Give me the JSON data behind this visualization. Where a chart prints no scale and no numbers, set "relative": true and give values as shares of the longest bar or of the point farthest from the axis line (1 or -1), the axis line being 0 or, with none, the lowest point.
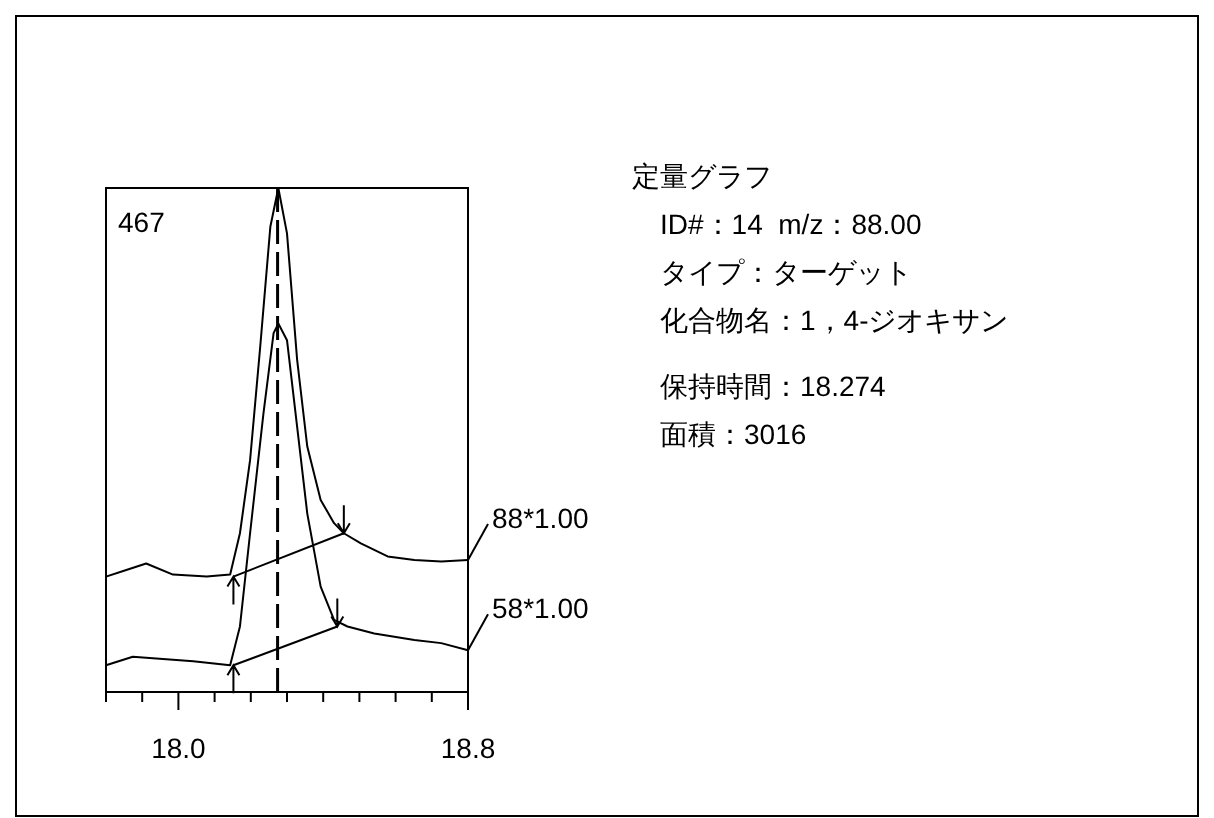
{
  "chart_data": {
    "type": "line",
    "title": "定量グラフ",
    "annotations": [
      "467",
      "ID#：14  m/z：88.00",
      "タイプ：ターゲット",
      "化合物名：1，4-ジオキサン",
      "保持時間：18.274",
      "面積：3016"
    ],
    "relative": true,
    "xlim": [
      17.8,
      18.8
    ],
    "xticks": [
      {
        "value": 17.8,
        "label": null
      },
      {
        "value": 17.9,
        "label": null
      },
      {
        "value": 18.0,
        "label": "18.0"
      },
      {
        "value": 18.1,
        "label": null
      },
      {
        "value": 18.2,
        "label": null
      },
      {
        "value": 18.3,
        "label": null
      },
      {
        "value": 18.4,
        "label": null
      },
      {
        "value": 18.5,
        "label": null
      },
      {
        "value": 18.6,
        "label": null
      },
      {
        "value": 18.7,
        "label": null
      },
      {
        "value": 18.8,
        "label": "18.8"
      }
    ],
    "grid": false,
    "legend": false,
    "marker": "none",
    "line_style": "solid",
    "ref_lines": [
      {
        "axis": "x",
        "value": 18.274,
        "line_style": "dashed",
        "color": "#000000"
      }
    ],
    "series": [
      {
        "name": "88*1.00",
        "color": "#000000",
        "x": [
          17.8,
          17.856,
          17.911,
          17.985,
          18.078,
          18.143,
          18.17,
          18.198,
          18.226,
          18.254,
          18.276,
          18.3,
          18.328,
          18.356,
          18.393,
          18.43,
          18.457,
          18.504,
          18.578,
          18.652,
          18.726,
          18.8
        ],
        "values": [
          0.229,
          0.242,
          0.255,
          0.233,
          0.229,
          0.233,
          0.315,
          0.46,
          0.685,
          0.923,
          1.0,
          0.91,
          0.659,
          0.487,
          0.381,
          0.335,
          0.315,
          0.295,
          0.269,
          0.262,
          0.259,
          0.262
        ]
      },
      {
        "name": "58*1.00",
        "color": "#000000",
        "x": [
          17.8,
          17.874,
          17.948,
          18.041,
          18.143,
          18.17,
          18.198,
          18.235,
          18.263,
          18.276,
          18.3,
          18.328,
          18.356,
          18.393,
          18.43,
          18.467,
          18.541,
          18.652,
          18.726,
          18.8
        ],
        "values": [
          0.053,
          0.07,
          0.066,
          0.061,
          0.053,
          0.13,
          0.315,
          0.553,
          0.712,
          0.731,
          0.698,
          0.526,
          0.354,
          0.209,
          0.143,
          0.13,
          0.116,
          0.103,
          0.097,
          0.083
        ]
      },
      {
        "color": "#000000",
        "x": [
          18.152,
          18.457
        ],
        "values": [
          0.229,
          0.315
        ]
      },
      {
        "color": "#000000",
        "x": [
          18.152,
          18.439
        ],
        "values": [
          0.053,
          0.13
        ]
      }
    ]
  }
}
